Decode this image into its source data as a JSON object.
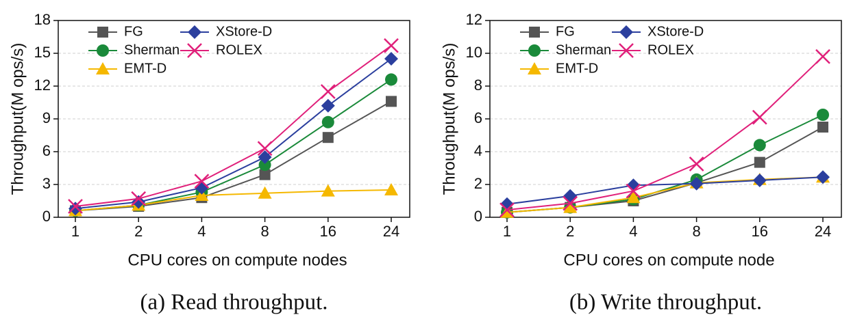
{
  "chart_data": [
    {
      "type": "line",
      "caption": "(a) Read throughput.",
      "x_label": "CPU cores on compute nodes",
      "y_label": "Throughput(M ops/s)",
      "categories": [
        "1",
        "2",
        "4",
        "8",
        "16",
        "24"
      ],
      "ylim": [
        0,
        18
      ],
      "yticks": [
        0,
        3,
        6,
        9,
        12,
        15,
        18
      ],
      "grid": true,
      "legend": "upper left",
      "series": [
        {
          "name": "FG",
          "color": "#555555",
          "marker": "square",
          "values": [
            0.6,
            1.0,
            1.8,
            3.9,
            7.3,
            10.6
          ]
        },
        {
          "name": "Sherman",
          "color": "#1a8a3a",
          "marker": "circle",
          "values": [
            0.6,
            1.1,
            2.3,
            4.8,
            8.7,
            12.6
          ]
        },
        {
          "name": "EMT-D",
          "color": "#f5b800",
          "marker": "triangle",
          "values": [
            0.6,
            1.1,
            2.0,
            2.2,
            2.4,
            2.5
          ]
        },
        {
          "name": "XStore-D",
          "color": "#2b3f9e",
          "marker": "diamond",
          "values": [
            0.8,
            1.4,
            2.7,
            5.5,
            10.2,
            14.5
          ]
        },
        {
          "name": "ROLEX",
          "color": "#e0207a",
          "marker": "x",
          "values": [
            1.0,
            1.7,
            3.3,
            6.3,
            11.5,
            15.7
          ]
        }
      ]
    },
    {
      "type": "line",
      "caption": "(b) Write throughput.",
      "x_label": "CPU cores on compute node",
      "y_label": "Throughput(M ops/s)",
      "categories": [
        "1",
        "2",
        "4",
        "8",
        "16",
        "24"
      ],
      "ylim": [
        0,
        12
      ],
      "yticks": [
        0,
        2,
        4,
        6,
        8,
        10,
        12
      ],
      "grid": true,
      "legend": "upper left",
      "series": [
        {
          "name": "FG",
          "color": "#555555",
          "marker": "square",
          "values": [
            0.3,
            0.6,
            1.0,
            2.1,
            3.35,
            5.5
          ]
        },
        {
          "name": "Sherman",
          "color": "#1a8a3a",
          "marker": "circle",
          "values": [
            0.3,
            0.6,
            1.1,
            2.3,
            4.4,
            6.25
          ]
        },
        {
          "name": "EMT-D",
          "color": "#f5b800",
          "marker": "triangle",
          "values": [
            0.3,
            0.6,
            1.2,
            2.1,
            2.3,
            2.45
          ]
        },
        {
          "name": "XStore-D",
          "color": "#2b3f9e",
          "marker": "diamond",
          "values": [
            0.8,
            1.3,
            1.95,
            2.05,
            2.25,
            2.45
          ]
        },
        {
          "name": "ROLEX",
          "color": "#e0207a",
          "marker": "x",
          "values": [
            0.45,
            0.85,
            1.6,
            3.25,
            6.1,
            9.8
          ]
        }
      ]
    }
  ]
}
